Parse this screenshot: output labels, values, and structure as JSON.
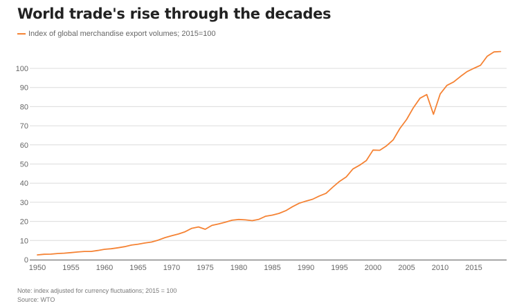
{
  "chart_data": {
    "type": "line",
    "title": "World trade's rise through the decades",
    "legend": [
      "Index of global merchandise export volumes; 2015=100"
    ],
    "legend_position": "top-left",
    "xlabel": "",
    "ylabel": "",
    "xlim": [
      1950,
      2019
    ],
    "ylim": [
      0,
      110
    ],
    "grid": true,
    "x_ticks": [
      1950,
      1955,
      1960,
      1965,
      1970,
      1975,
      1980,
      1985,
      1990,
      1995,
      2000,
      2005,
      2010,
      2015
    ],
    "y_ticks": [
      0,
      10,
      20,
      30,
      40,
      50,
      60,
      70,
      80,
      90,
      100
    ],
    "series": [
      {
        "name": "Index of global merchandise export volumes; 2015=100",
        "color": "#f58233",
        "x": [
          1950,
          1951,
          1952,
          1953,
          1954,
          1955,
          1956,
          1957,
          1958,
          1959,
          1960,
          1961,
          1962,
          1963,
          1964,
          1965,
          1966,
          1967,
          1968,
          1969,
          1970,
          1971,
          1972,
          1973,
          1974,
          1975,
          1976,
          1977,
          1978,
          1979,
          1980,
          1981,
          1982,
          1983,
          1984,
          1985,
          1986,
          1987,
          1988,
          1989,
          1990,
          1991,
          1992,
          1993,
          1994,
          1995,
          1996,
          1997,
          1998,
          1999,
          2000,
          2001,
          2002,
          2003,
          2004,
          2005,
          2006,
          2007,
          2008,
          2009,
          2010,
          2011,
          2012,
          2013,
          2014,
          2015,
          2016,
          2017,
          2018,
          2019
        ],
        "values": [
          2.5,
          2.8,
          2.9,
          3.2,
          3.4,
          3.7,
          4.0,
          4.3,
          4.3,
          4.8,
          5.4,
          5.7,
          6.2,
          6.8,
          7.6,
          8.1,
          8.7,
          9.2,
          10.2,
          11.5,
          12.5,
          13.4,
          14.6,
          16.4,
          17.1,
          15.9,
          17.9,
          18.7,
          19.6,
          20.6,
          21.0,
          20.8,
          20.4,
          21.1,
          22.7,
          23.3,
          24.2,
          25.6,
          27.7,
          29.5,
          30.6,
          31.6,
          33.3,
          34.7,
          37.9,
          40.9,
          43.2,
          47.4,
          49.4,
          51.8,
          57.3,
          57.2,
          59.5,
          62.6,
          68.6,
          73.3,
          79.4,
          84.4,
          86.3,
          76.0,
          86.6,
          91.1,
          92.9,
          95.7,
          98.3,
          100.0,
          101.6,
          106.3,
          108.6,
          108.8
        ]
      }
    ]
  },
  "footer": {
    "note": "Note: index adjusted for currency fluctuations; 2015 = 100",
    "source": "Source: WTO"
  }
}
